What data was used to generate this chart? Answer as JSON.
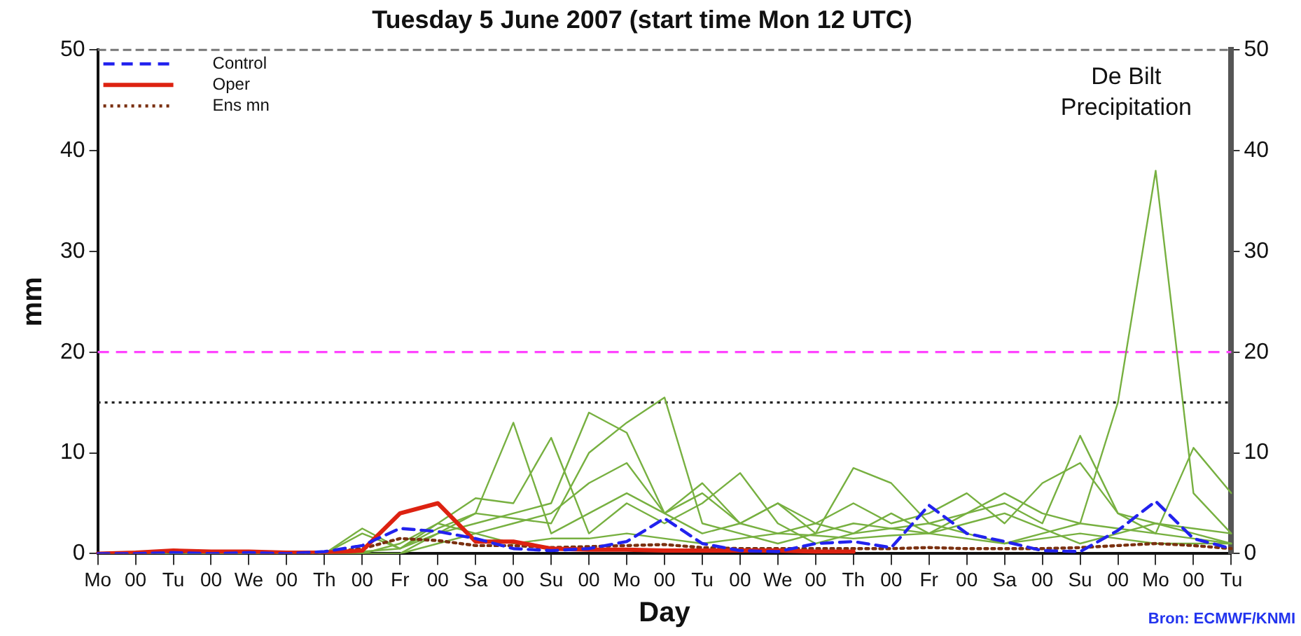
{
  "chart_data": {
    "type": "line",
    "title": "Tuesday 5 June 2007 (start time Mon 12 UTC)",
    "xlabel": "Day",
    "ylabel": "mm",
    "annotations": [
      "De Bilt Precipitation",
      "Bron: ECMWF/KNMI"
    ],
    "categories": [
      "Mo",
      "00",
      "Tu",
      "00",
      "We",
      "00",
      "Th",
      "00",
      "Fr",
      "00",
      "Sa",
      "00",
      "Su",
      "00",
      "Mo",
      "00",
      "Tu",
      "00",
      "We",
      "00",
      "Th",
      "00",
      "Fr",
      "00",
      "Sa",
      "00",
      "Su",
      "00",
      "Mo",
      "00",
      "Tu"
    ],
    "ylim": [
      0,
      50
    ],
    "yticks": [
      0,
      10,
      20,
      30,
      40,
      50
    ],
    "y2lim": [
      0,
      50
    ],
    "y2ticks": [
      0,
      10,
      20,
      30,
      40,
      50
    ],
    "grid": false,
    "legend": "top left",
    "marker": "none",
    "ref_lines": [
      {
        "axis": "y",
        "value": 20,
        "color": "#ff44ff",
        "line_style": "dashed"
      },
      {
        "axis": "y",
        "value": 15,
        "color": "#222222",
        "line_style": "dotted"
      }
    ],
    "series": [
      {
        "name": "Control",
        "color": "#2222ee",
        "line_style": "dashed",
        "values": [
          0,
          0,
          0.1,
          0,
          0.1,
          0,
          0.2,
          0.8,
          2.5,
          2.2,
          1.5,
          0.5,
          0.3,
          0.5,
          1.2,
          3.5,
          1,
          0.3,
          0.2,
          1,
          1.2,
          0.6,
          4.8,
          2,
          1.2,
          0.3,
          0.2,
          2.3,
          5.2,
          1.5,
          0.5
        ]
      },
      {
        "name": "Oper",
        "color": "#dd2211",
        "line_style": "solid",
        "values": [
          0,
          0.1,
          0.3,
          0.2,
          0.2,
          0.1,
          0.1,
          0.3,
          4,
          5,
          1.2,
          1.2,
          0.5,
          0.4,
          0.4,
          0.3,
          0.3,
          0.3,
          0.3,
          0.2,
          0.2,
          null,
          null,
          null,
          null,
          null,
          null,
          null,
          null,
          null,
          null
        ]
      },
      {
        "name": "Ens mn",
        "color": "#7a3010",
        "line_style": "dotted",
        "values": [
          0,
          0.1,
          0.2,
          0.2,
          0.2,
          0.1,
          0.1,
          0.5,
          1.5,
          1.3,
          0.8,
          0.8,
          0.6,
          0.7,
          0.8,
          0.9,
          0.6,
          0.5,
          0.5,
          0.5,
          0.5,
          0.5,
          0.6,
          0.5,
          0.5,
          0.5,
          0.6,
          0.8,
          1,
          0.8,
          0.5
        ]
      },
      {
        "color": "#77b040",
        "line_style": "solid",
        "values": [
          0,
          0,
          0,
          0,
          0,
          0,
          0,
          2.5,
          0.5,
          3,
          2,
          1,
          1.5,
          1.5,
          2,
          1.5,
          1,
          1.5,
          2,
          1.8,
          1.5,
          1.8,
          2,
          1.5,
          1,
          2,
          3,
          15,
          38,
          6,
          2
        ]
      },
      {
        "color": "#77b040",
        "line_style": "solid",
        "values": [
          0,
          0,
          0,
          0,
          0,
          0,
          0,
          0.2,
          0.5,
          2.5,
          4,
          3.5,
          3,
          10,
          13,
          15.5,
          3,
          2,
          1,
          2,
          3,
          2.5,
          2,
          3,
          4,
          2.5,
          1,
          2,
          3,
          2,
          1
        ]
      },
      {
        "color": "#77b040",
        "line_style": "solid",
        "values": [
          0,
          0,
          0,
          0,
          0,
          0,
          0,
          2,
          0.5,
          2,
          4,
          13,
          2,
          4,
          6,
          4,
          2,
          3,
          5,
          3,
          2,
          2.5,
          3,
          2,
          1,
          1.5,
          2,
          1.5,
          1,
          1,
          1
        ]
      },
      {
        "color": "#77b040",
        "line_style": "solid",
        "values": [
          0,
          0,
          0,
          0,
          0,
          0,
          0,
          0,
          1,
          3,
          5.5,
          5,
          11.5,
          2,
          5,
          3,
          5,
          8,
          3,
          1,
          2,
          4,
          2,
          4,
          6,
          4,
          3,
          2.5,
          2,
          1.5,
          1
        ]
      },
      {
        "color": "#77b040",
        "line_style": "solid",
        "values": [
          0,
          0,
          0,
          0,
          0,
          0,
          0,
          0,
          0,
          2,
          3,
          4,
          5,
          14,
          12,
          4,
          6,
          3,
          5,
          2,
          8.5,
          7,
          3,
          4,
          5,
          3,
          11.7,
          4,
          2,
          10.5,
          6
        ]
      },
      {
        "color": "#77b040",
        "line_style": "solid",
        "values": [
          0,
          0,
          0,
          0,
          0,
          0,
          0,
          0,
          0,
          1,
          2,
          3,
          4,
          7,
          9,
          4,
          7,
          3,
          2,
          3,
          5,
          3,
          4,
          6,
          3,
          7,
          9,
          4,
          3,
          2.5,
          2
        ]
      }
    ]
  }
}
